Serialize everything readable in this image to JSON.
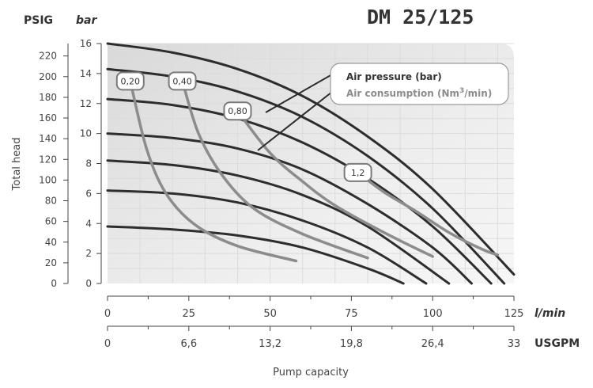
{
  "chart_data": {
    "type": "line",
    "title": "DM 25/125",
    "y_left_unit": "PSIG",
    "y_right_unit": "bar",
    "ylabel": "Total head",
    "xlabel": "Pump capacity",
    "x_unit_primary": "l/min",
    "x_unit_secondary": "USGPM",
    "xlim": [
      0,
      125
    ],
    "ylim_bar": [
      0,
      16
    ],
    "psig_ticks": [
      "0",
      "20",
      "40",
      "60",
      "80",
      "100",
      "120",
      "140",
      "160",
      "180",
      "200",
      "220"
    ],
    "bar_ticks": [
      "0",
      "2",
      "4",
      "6",
      "8",
      "10",
      "12",
      "14",
      "16"
    ],
    "x_ticks_lmin": [
      "0",
      "25",
      "50",
      "75",
      "100",
      "125"
    ],
    "x_ticks_usgpm": [
      "0",
      "6,6",
      "13,2",
      "19,8",
      "26,4",
      "33"
    ],
    "grid": true,
    "legend": {
      "placement": "top-right",
      "air_pressure": "Air pressure (bar)",
      "air_consumption_prefix": "Air consumption (Nm",
      "air_consumption_sup": "3",
      "air_consumption_suffix": "/min)"
    },
    "colors": {
      "pressure_curve": "#2d2d2d",
      "consumption_curve": "#8c8c8c",
      "grid": "#dcdcdc",
      "plot_bg": "#ededed"
    },
    "pressure_series": [
      {
        "points": [
          [
            0,
            3.8
          ],
          [
            20,
            3.6
          ],
          [
            40,
            3.2
          ],
          [
            60,
            2.4
          ],
          [
            80,
            1.0
          ],
          [
            91,
            0
          ]
        ]
      },
      {
        "points": [
          [
            0,
            6.2
          ],
          [
            20,
            6.0
          ],
          [
            40,
            5.4
          ],
          [
            60,
            4.2
          ],
          [
            80,
            2.4
          ],
          [
            98,
            0
          ]
        ]
      },
      {
        "points": [
          [
            0,
            8.2
          ],
          [
            20,
            7.9
          ],
          [
            40,
            7.2
          ],
          [
            60,
            5.9
          ],
          [
            80,
            3.8
          ],
          [
            105,
            0
          ]
        ]
      },
      {
        "points": [
          [
            0,
            10.0
          ],
          [
            20,
            9.7
          ],
          [
            40,
            9.0
          ],
          [
            60,
            7.6
          ],
          [
            80,
            5.3
          ],
          [
            100,
            2.4
          ],
          [
            112,
            0
          ]
        ]
      },
      {
        "points": [
          [
            0,
            12.3
          ],
          [
            20,
            11.9
          ],
          [
            40,
            11.0
          ],
          [
            60,
            9.4
          ],
          [
            80,
            7.0
          ],
          [
            100,
            3.8
          ],
          [
            118,
            0
          ]
        ]
      },
      {
        "points": [
          [
            0,
            14.3
          ],
          [
            20,
            13.8
          ],
          [
            40,
            12.8
          ],
          [
            60,
            11.1
          ],
          [
            80,
            8.5
          ],
          [
            100,
            5.0
          ],
          [
            122,
            0
          ]
        ]
      },
      {
        "points": [
          [
            0,
            16.0
          ],
          [
            20,
            15.4
          ],
          [
            40,
            14.3
          ],
          [
            60,
            12.5
          ],
          [
            80,
            9.8
          ],
          [
            100,
            6.3
          ],
          [
            125,
            0.6
          ]
        ]
      }
    ],
    "consumption_series": [
      {
        "label": "0,20",
        "points": [
          [
            7,
            13.5
          ],
          [
            12,
            9.0
          ],
          [
            18,
            6.0
          ],
          [
            27,
            3.9
          ],
          [
            40,
            2.5
          ],
          [
            58,
            1.5
          ]
        ]
      },
      {
        "label": "0,40",
        "points": [
          [
            23,
            13.5
          ],
          [
            28,
            10.0
          ],
          [
            35,
            7.3
          ],
          [
            45,
            5.0
          ],
          [
            60,
            3.3
          ],
          [
            80,
            1.7
          ]
        ]
      },
      {
        "label": "0,80",
        "points": [
          [
            40,
            11.5
          ],
          [
            50,
            8.7
          ],
          [
            60,
            6.8
          ],
          [
            70,
            5.2
          ],
          [
            85,
            3.4
          ],
          [
            100,
            1.8
          ]
        ]
      },
      {
        "label": "1,2",
        "points": [
          [
            77,
            7.4
          ],
          [
            85,
            6.1
          ],
          [
            95,
            4.8
          ],
          [
            105,
            3.4
          ],
          [
            115,
            2.3
          ],
          [
            120,
            1.9
          ]
        ]
      }
    ],
    "badge_positions": [
      [
        7,
        13.5
      ],
      [
        23,
        13.5
      ],
      [
        40,
        11.5
      ],
      [
        77,
        7.4
      ]
    ]
  }
}
